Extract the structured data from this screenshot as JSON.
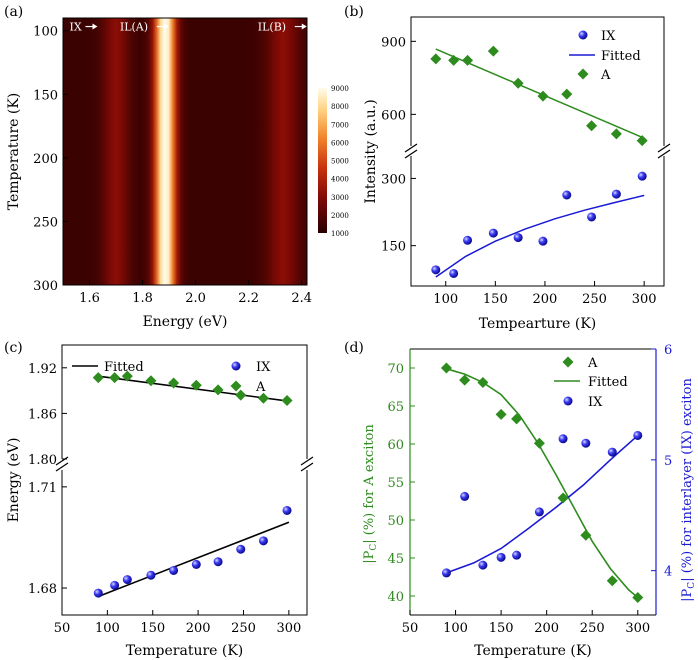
{
  "colors": {
    "green": "#2e8b1e",
    "blue": "#1a1ad6",
    "black": "#000000"
  },
  "chart_data": [
    {
      "panel": "(a)",
      "type": "heatmap",
      "xlabel": "Energy (eV)",
      "ylabel": "Temperature (K)",
      "xlim": [
        1.5,
        2.42
      ],
      "ylim": [
        300,
        90
      ],
      "xticks": [
        "1.6",
        "1.8",
        "2.0",
        "2.2",
        "2.4"
      ],
      "yticks": [
        "100",
        "150",
        "200",
        "250",
        "300"
      ],
      "annotations": [
        {
          "text": "IX",
          "energy": 1.63,
          "temperature": 103
        },
        {
          "text": "IL(A)",
          "energy": 1.82,
          "temperature": 103
        },
        {
          "text": "IL(B)",
          "energy": 2.34,
          "temperature": 103
        }
      ],
      "colorbar": {
        "min": 1000,
        "max": 9000,
        "ticks": [
          "1000",
          "2000",
          "3000",
          "4000",
          "5000",
          "6000",
          "7000",
          "8000",
          "9000"
        ]
      },
      "peaks": [
        {
          "name": "IL(A)",
          "center_eV": 1.885,
          "width_eV": 0.04
        },
        {
          "name": "IX",
          "center_eV": 1.7,
          "width_eV": 0.05
        },
        {
          "name": "IL(B)",
          "center_eV": 2.33,
          "width_eV": 0.06
        }
      ]
    },
    {
      "panel": "(b)",
      "type": "scatter",
      "xlabel": "Tempearture (K)",
      "ylabel": "Intensity (a.u.)",
      "xlim": [
        65,
        320
      ],
      "broken_axis": {
        "upper_range": [
          470,
          1000
        ],
        "lower_range": [
          60,
          350
        ]
      },
      "xticks": [
        "100",
        "150",
        "200",
        "250",
        "300"
      ],
      "yticks_upper": [
        "600",
        "900"
      ],
      "yticks_lower": [
        "150",
        "300"
      ],
      "legend": [
        "IX",
        "Fitted",
        "A"
      ],
      "series": [
        {
          "name": "IX",
          "marker": "circle",
          "color": "blue",
          "x": [
            90,
            108,
            122,
            148,
            173,
            198,
            222,
            247,
            272,
            298
          ],
          "y": [
            96,
            88,
            162,
            178,
            168,
            160,
            263,
            214,
            265,
            305
          ]
        },
        {
          "name": "A",
          "marker": "diamond",
          "color": "green",
          "x": [
            90,
            108,
            122,
            148,
            173,
            198,
            222,
            247,
            272,
            298
          ],
          "y": [
            828,
            822,
            822,
            860,
            728,
            675,
            683,
            553,
            520,
            492
          ]
        },
        {
          "name": "Fitted",
          "type": "line",
          "color": "green",
          "x": [
            90,
            300
          ],
          "y": [
            868,
            502
          ]
        },
        {
          "name": "Fitted",
          "type": "line",
          "color": "blue",
          "x": [
            90,
            120,
            150,
            180,
            210,
            240,
            270,
            300
          ],
          "y": [
            80,
            126,
            160,
            187,
            210,
            229,
            246,
            262
          ]
        }
      ]
    },
    {
      "panel": "(c)",
      "type": "scatter",
      "xlabel": "Temperature (K)",
      "ylabel": "Energy (eV)",
      "xlim": [
        50,
        320
      ],
      "broken_axis": {
        "upper_range": [
          1.8,
          1.95
        ],
        "lower_range": [
          1.672,
          1.715
        ]
      },
      "xticks": [
        "50",
        "100",
        "150",
        "200",
        "250",
        "300"
      ],
      "yticks_upper": [
        "1.80",
        "1.86",
        "1.92"
      ],
      "yticks_lower": [
        "1.68",
        "1.71"
      ],
      "legend": [
        "Fitted",
        "IX",
        "A"
      ],
      "series": [
        {
          "name": "A",
          "marker": "diamond",
          "color": "green",
          "x": [
            90,
            108,
            122,
            148,
            173,
            198,
            222,
            247,
            272,
            298
          ],
          "y": [
            1.907,
            1.907,
            1.909,
            1.903,
            1.9,
            1.897,
            1.891,
            1.884,
            1.88,
            1.877
          ]
        },
        {
          "name": "IX",
          "marker": "circle",
          "color": "blue",
          "x": [
            90,
            108,
            122,
            148,
            173,
            198,
            222,
            247,
            272,
            298
          ],
          "y": [
            1.6785,
            1.6808,
            1.6825,
            1.6838,
            1.6852,
            1.687,
            1.6878,
            1.6915,
            1.694,
            1.703
          ]
        },
        {
          "name": "Fitted",
          "type": "line",
          "color": "black",
          "x": [
            90,
            300
          ],
          "y": [
            1.909,
            1.876
          ]
        },
        {
          "name": "Fitted",
          "type": "line",
          "color": "black",
          "x": [
            90,
            300
          ],
          "y": [
            1.6775,
            1.6995
          ]
        }
      ]
    },
    {
      "panel": "(d)",
      "type": "scatter",
      "xlabel": "Temperature (K)",
      "ylabel_left": "|P",
      "ylabel_left_sub": "C",
      "ylabel_left_rest": "| (%) for A exciton",
      "ylabel_right": "|P",
      "ylabel_right_sub": "C",
      "ylabel_right_rest": "| (%) for interlayer (IX) exciton",
      "xlim": [
        50,
        320
      ],
      "ylim_left": [
        37.5,
        72.5
      ],
      "ylim_right": [
        3.6,
        6.0
      ],
      "xticks": [
        "50",
        "100",
        "150",
        "200",
        "250",
        "300"
      ],
      "yticks_left": [
        "40",
        "45",
        "50",
        "55",
        "60",
        "65",
        "70"
      ],
      "yticks_right": [
        "4",
        "5",
        "6"
      ],
      "legend": [
        "A",
        "Fitted",
        "IX"
      ],
      "series": [
        {
          "name": "A",
          "marker": "diamond",
          "color": "green",
          "axis": "left",
          "x": [
            90,
            110,
            130,
            150,
            167,
            192,
            218,
            243,
            272,
            300
          ],
          "y": [
            70,
            68.4,
            68.1,
            63.9,
            63.3,
            60.1,
            52.9,
            48,
            42,
            39.8
          ]
        },
        {
          "name": "IX",
          "marker": "circle",
          "color": "blue",
          "axis": "right",
          "x": [
            90,
            110,
            130,
            150,
            167,
            192,
            218,
            243,
            272,
            300
          ],
          "y": [
            3.98,
            4.67,
            4.05,
            4.12,
            4.14,
            4.53,
            5.19,
            5.15,
            5.07,
            5.22
          ]
        },
        {
          "name": "Fitted",
          "type": "line",
          "color": "green",
          "axis": "left",
          "x": [
            90,
            110,
            130,
            150,
            170,
            190,
            210,
            230,
            250,
            270,
            290,
            300
          ],
          "y": [
            69.9,
            69.2,
            68.1,
            66.5,
            63.8,
            60.2,
            56,
            51.6,
            47.2,
            43.6,
            40.8,
            39.8
          ]
        },
        {
          "name": "Fitted",
          "type": "line",
          "color": "blue",
          "axis": "right",
          "x": [
            90,
            120,
            150,
            180,
            210,
            240,
            270,
            300
          ],
          "y": [
            3.98,
            4.07,
            4.2,
            4.38,
            4.57,
            4.77,
            5.0,
            5.22
          ]
        }
      ]
    }
  ]
}
